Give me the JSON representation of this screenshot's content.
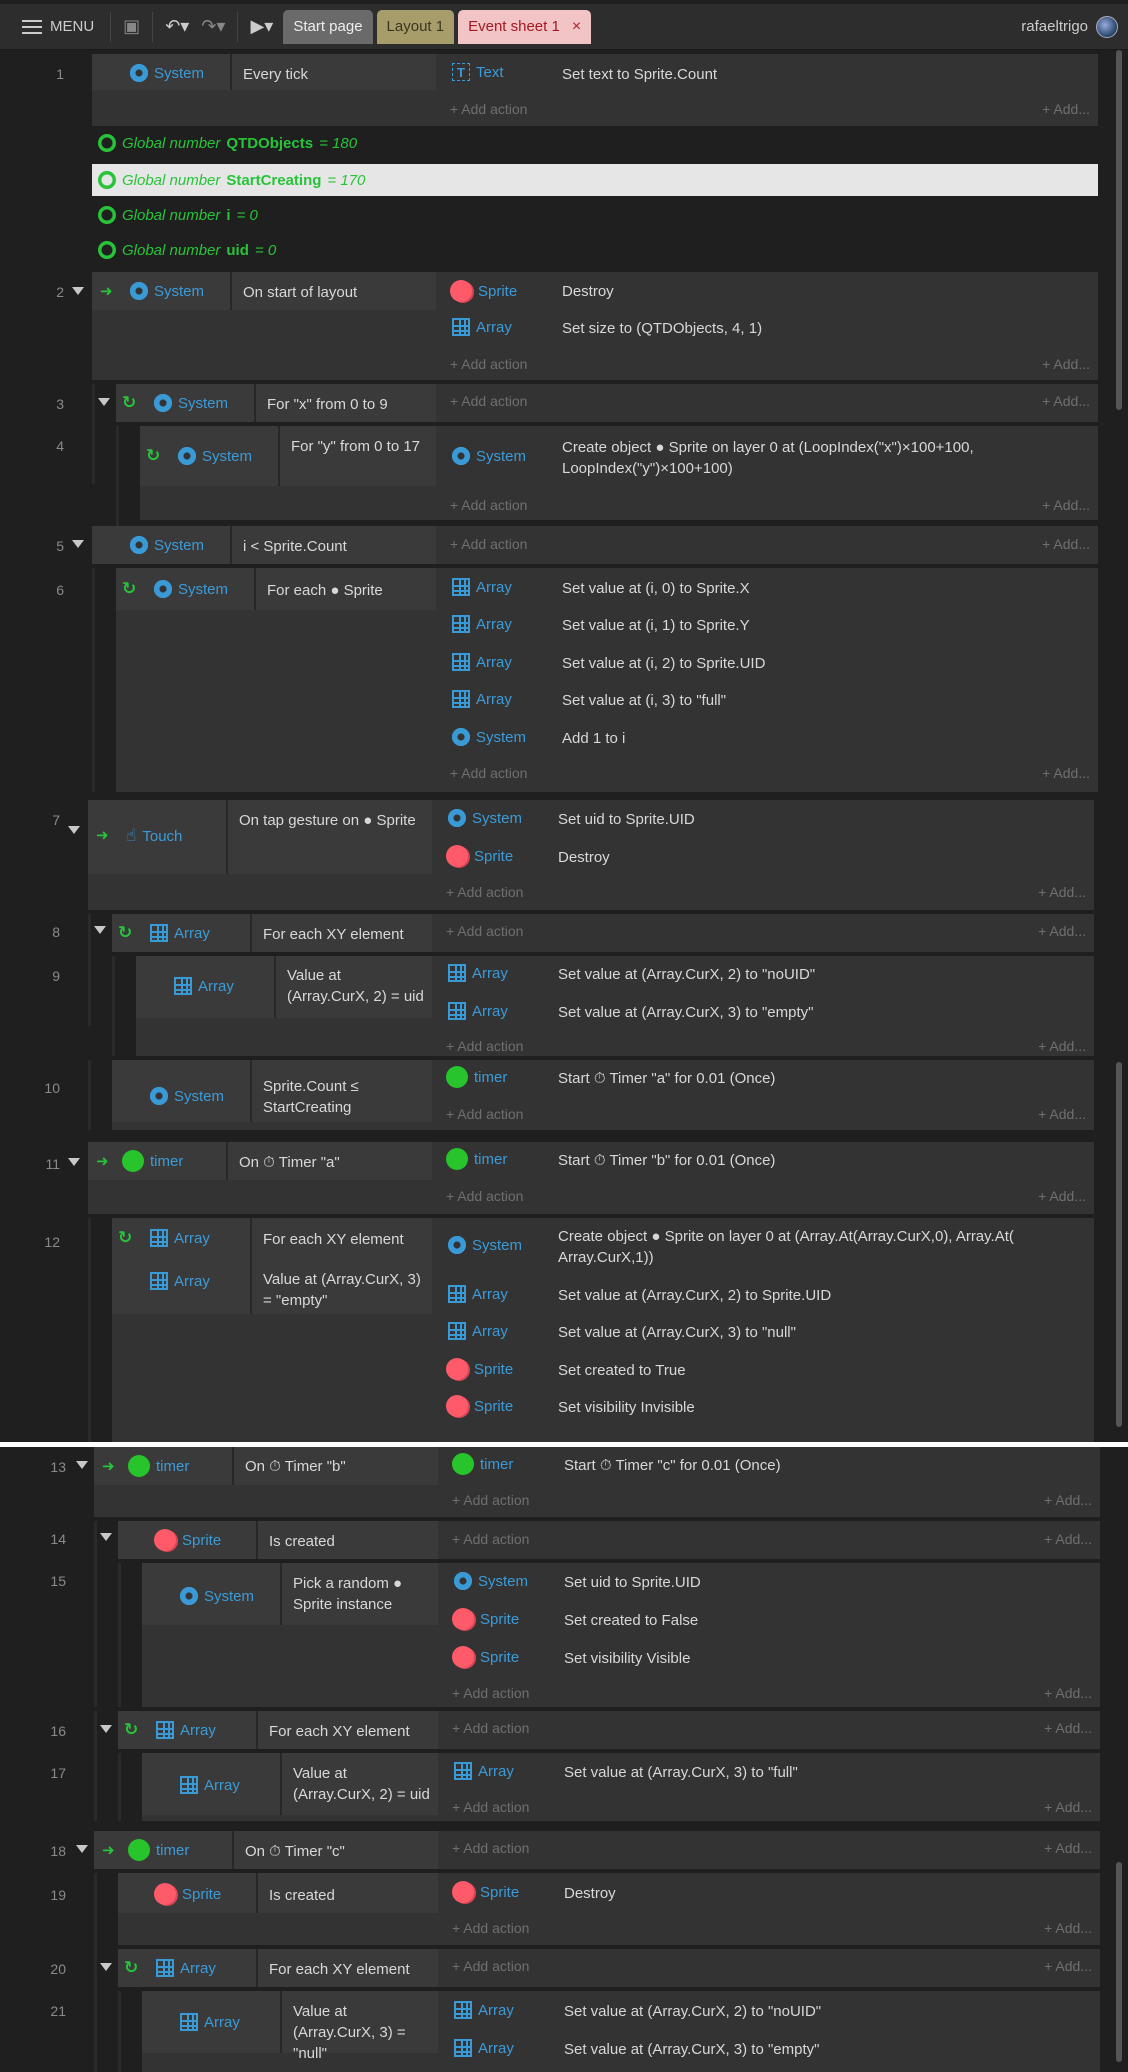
{
  "toolbar": {
    "menu": "MENU",
    "tabs": [
      "Start page",
      "Layout 1",
      "Event sheet 1"
    ],
    "close": "×",
    "user": "rafaeltrigo"
  },
  "labels": {
    "add_action": "+ Add action",
    "add_more": "+ Add..."
  },
  "objects": {
    "system": "System",
    "text": "Text",
    "sprite": "Sprite",
    "array": "Array",
    "touch": "Touch",
    "timer": "timer"
  },
  "globals": [
    {
      "prefix": "Global number",
      "name": "QTDObjects",
      "value": "= 180"
    },
    {
      "prefix": "Global number",
      "name": "StartCreating",
      "value": "= 170"
    },
    {
      "prefix": "Global number",
      "name": "i",
      "value": "= 0"
    },
    {
      "prefix": "Global number",
      "name": "uid",
      "value": "= 0"
    }
  ],
  "events": {
    "e1": {
      "num": "1",
      "cond": "Every tick",
      "act": "Set text to Sprite.Count"
    },
    "e2": {
      "num": "2",
      "cond": "On start of layout",
      "a1": "Destroy",
      "a2": "Set size to (QTDObjects, 4, 1)"
    },
    "e3": {
      "num": "3",
      "cond": "For \"x\" from 0 to 9"
    },
    "e4": {
      "num": "4",
      "cond": "For \"y\" from 0 to 17",
      "act": "Create object ● Sprite on layer 0 at (LoopIndex(\"x\")×100+100, LoopIndex(\"y\")×100+100)"
    },
    "e5": {
      "num": "5",
      "cond": "i < Sprite.Count"
    },
    "e6": {
      "num": "6",
      "cond": "For each ● Sprite",
      "a1": "Set value at (i, 0) to Sprite.X",
      "a2": "Set value at (i, 1) to Sprite.Y",
      "a3": "Set value at (i, 2) to Sprite.UID",
      "a4": "Set value at (i, 3) to \"full\"",
      "a5": "Add 1 to i"
    },
    "e7": {
      "num": "7",
      "cond": "On tap gesture on ● Sprite",
      "a1": "Set uid to Sprite.UID",
      "a2": "Destroy"
    },
    "e8": {
      "num": "8",
      "cond": "For each XY element"
    },
    "e9": {
      "num": "9",
      "cond": "Value at (Array.CurX, 2) = uid",
      "a1": "Set value at (Array.CurX, 2) to \"noUID\"",
      "a2": "Set value at (Array.CurX, 3) to \"empty\""
    },
    "e10": {
      "num": "10",
      "cond": "Sprite.Count ≤ StartCreating",
      "act": "Start ⏱ Timer \"a\" for 0.01 (Once)"
    },
    "e11": {
      "num": "11",
      "cond": "On ⏱ Timer \"a\"",
      "act": "Start ⏱ Timer \"b\" for 0.01 (Once)"
    },
    "e12": {
      "num": "12",
      "c1": "For each XY element",
      "c2": "Value at (Array.CurX, 3) = \"empty\"",
      "a1": "Create object ● Sprite on layer 0 at (Array.At(Array.CurX,0), Array.At( Array.CurX,1))",
      "a2": "Set value at (Array.CurX, 2) to Sprite.UID",
      "a3": "Set value at (Array.CurX, 3) to \"null\"",
      "a4": "Set created to True",
      "a5": "Set visibility Invisible"
    },
    "e13": {
      "num": "13",
      "cond": "On ⏱ Timer \"b\"",
      "act": "Start ⏱ Timer \"c\" for 0.01 (Once)"
    },
    "e14": {
      "num": "14",
      "cond": "Is created"
    },
    "e15": {
      "num": "15",
      "cond": "Pick a random ● Sprite instance",
      "a1": "Set uid to Sprite.UID",
      "a2": "Set created to False",
      "a3": "Set visibility Visible"
    },
    "e16": {
      "num": "16",
      "cond": "For each XY element"
    },
    "e17": {
      "num": "17",
      "cond": "Value at (Array.CurX, 2) = uid",
      "act": "Set value at (Array.CurX, 3) to \"full\""
    },
    "e18": {
      "num": "18",
      "cond": "On ⏱ Timer \"c\""
    },
    "e19": {
      "num": "19",
      "cond": "Is created",
      "act": "Destroy"
    },
    "e20": {
      "num": "20",
      "cond": "For each XY element"
    },
    "e21": {
      "num": "21",
      "cond": "Value at (Array.CurX, 3) = \"null\"",
      "a1": "Set value at (Array.CurX, 2) to \"noUID\"",
      "a2": "Set value at (Array.CurX, 3) to \"empty\""
    }
  },
  "colors": {
    "accent": "#3b9bd8",
    "trigger": "#27c43a",
    "sprite": "#ff5a6a",
    "timer": "#28c42c"
  }
}
